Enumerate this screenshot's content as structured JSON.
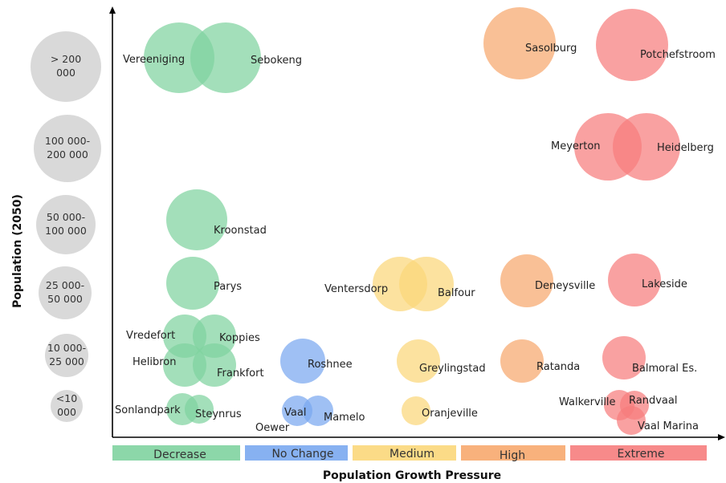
{
  "chart_data": {
    "type": "scatter",
    "xlabel": "Population Growth Pressure",
    "ylabel": "Population (2050)",
    "categories_x": [
      "Decrease",
      "No Change",
      "Medium",
      "High",
      "Extreme"
    ],
    "categories_y": [
      ">200 000",
      "100 000-200 000",
      "50 000-100 000",
      "25 000-50 000",
      "10 000-25 000",
      "<10 000"
    ],
    "legend": [
      {
        "label": "Decrease",
        "color": "#7fd3a0"
      },
      {
        "label": "No Change",
        "color": "#7aa8f0"
      },
      {
        "label": "Medium",
        "color": "#fbd77a"
      },
      {
        "label": "High",
        "color": "#f7a86e"
      },
      {
        "label": "Extreme",
        "color": "#f67d7d"
      }
    ],
    "size_classes": [
      {
        "lines": [
          "> 200",
          "000"
        ]
      },
      {
        "lines": [
          "100 000-",
          "200 000"
        ]
      },
      {
        "lines": [
          "50 000-",
          "100 000"
        ]
      },
      {
        "lines": [
          "25 000-",
          "50 000"
        ]
      },
      {
        "lines": [
          "10 000-",
          "25 000"
        ]
      },
      {
        "lines": [
          "<10",
          "000"
        ]
      }
    ],
    "towns": [
      {
        "name": "Vereeniging",
        "growth": "Decrease",
        "population": ">200 000"
      },
      {
        "name": "Sebokeng",
        "growth": "Decrease",
        "population": ">200 000"
      },
      {
        "name": "Kroonstad",
        "growth": "Decrease",
        "population": "50 000-100 000"
      },
      {
        "name": "Parys",
        "growth": "Decrease",
        "population": "25 000-50 000"
      },
      {
        "name": "Vredefort",
        "growth": "Decrease",
        "population": "10 000-25 000"
      },
      {
        "name": "Koppies",
        "growth": "Decrease",
        "population": "10 000-25 000"
      },
      {
        "name": "Helibron",
        "growth": "Decrease",
        "population": "10 000-25 000"
      },
      {
        "name": "Frankfort",
        "growth": "Decrease",
        "population": "10 000-25 000"
      },
      {
        "name": "Sonlandpark",
        "growth": "Decrease",
        "population": "<10 000"
      },
      {
        "name": "Steynrus",
        "growth": "Decrease",
        "population": "<10 000"
      },
      {
        "name": "Roshnee",
        "growth": "No Change",
        "population": "10 000-25 000"
      },
      {
        "name": "Vaal Oewer",
        "growth": "No Change",
        "population": "<10 000"
      },
      {
        "name": "Mamelo",
        "growth": "No Change",
        "population": "<10 000"
      },
      {
        "name": "Ventersdorp",
        "growth": "Medium",
        "population": "25 000-50 000"
      },
      {
        "name": "Balfour",
        "growth": "Medium",
        "population": "25 000-50 000"
      },
      {
        "name": "Greylingstad",
        "growth": "Medium",
        "population": "10 000-25 000"
      },
      {
        "name": "Oranjeville",
        "growth": "Medium",
        "population": "<10 000"
      },
      {
        "name": "Sasolburg",
        "growth": "High",
        "population": ">200 000"
      },
      {
        "name": "Deneysville",
        "growth": "High",
        "population": "25 000-50 000"
      },
      {
        "name": "Ratanda",
        "growth": "High",
        "population": "10 000-25 000"
      },
      {
        "name": "Potchefstroom",
        "growth": "Extreme",
        "population": ">200 000"
      },
      {
        "name": "Meyerton",
        "growth": "Extreme",
        "population": "100 000-200 000"
      },
      {
        "name": "Heidelberg",
        "growth": "Extreme",
        "population": "100 000-200 000"
      },
      {
        "name": "Lakeside",
        "growth": "Extreme",
        "population": "25 000-50 000"
      },
      {
        "name": "Balmoral Es.",
        "growth": "Extreme",
        "population": "10 000-25 000"
      },
      {
        "name": "Walkerville",
        "growth": "Extreme",
        "population": "<10 000"
      },
      {
        "name": "Randvaal",
        "growth": "Extreme",
        "population": "<10 000"
      },
      {
        "name": "Vaal Marina",
        "growth": "Extreme",
        "population": "<10 000"
      }
    ]
  }
}
